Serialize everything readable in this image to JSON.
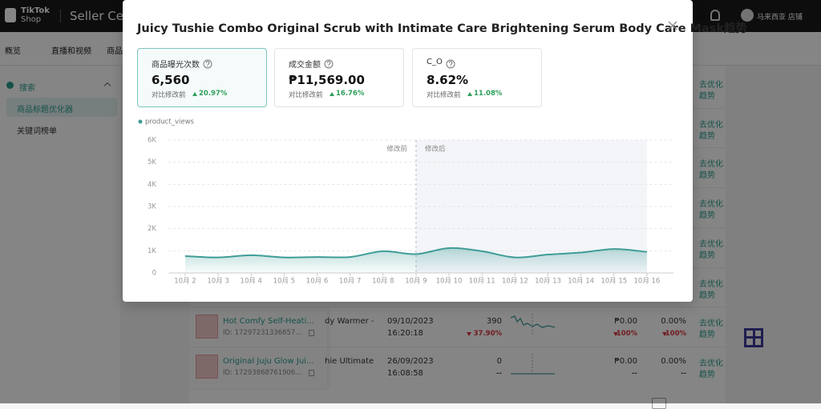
{
  "header": {
    "logo": "TikTok",
    "logo_sub": "Shop",
    "title": "Seller Cen",
    "store": "马来西亚 店铺"
  },
  "nav": [
    "概览",
    "直播和视频",
    "商品"
  ],
  "sidebar": {
    "section": "搜索",
    "items": [
      "商品标题优化器",
      "关键词榜单"
    ]
  },
  "table": {
    "actions": [
      [
        "去优化",
        "趋势"
      ],
      [
        "去优化",
        "趋势"
      ],
      [
        "去优化",
        "趋势"
      ],
      [
        "去优化",
        "趋势"
      ],
      [
        "去优化",
        "趋势"
      ],
      [
        "去优化",
        "趋势"
      ],
      [
        "去优化",
        "趋势"
      ],
      [
        "去优化",
        "趋势"
      ]
    ],
    "rows": [
      {
        "name": "Hot Comfy Self-Heati...",
        "id": "ID: 17297231336657...",
        "title_tail": "dy Warmer -",
        "date": "09/10/2023",
        "time": "16:20:18",
        "views": "390",
        "views_change": {
          "text": "37.90%",
          "direction": "down"
        },
        "sales": "₱0.00",
        "sales_change": {
          "text": "100%",
          "direction": "down"
        },
        "rate": "0.00%",
        "rate_change": {
          "text": "100%",
          "direction": "down"
        }
      },
      {
        "name": "Original Juju Glow Jui...",
        "id": "ID: 17293868761906...",
        "title_tail": "hie Ultimate",
        "date": "26/09/2023",
        "time": "16:08:58",
        "views": "0",
        "views_change": {
          "text": "--"
        },
        "sales": "₱0.00",
        "sales_change": {
          "text": "--"
        },
        "rate": "0.00%",
        "rate_change": {
          "text": "--"
        }
      }
    ]
  },
  "modal": {
    "title": "Juicy Tushie Combo Original Scrub with Intimate Care Brightening Serum Body Care Mask趋势",
    "metrics": [
      {
        "label": "商品曝光次数",
        "value": "6,560",
        "compare_label": "对比修改前",
        "change": {
          "text": "20.97%",
          "direction": "up"
        }
      },
      {
        "label": "成交金额",
        "value": "₱11,569.00",
        "compare_label": "对比修改前",
        "change": {
          "text": "16.76%",
          "direction": "up"
        }
      },
      {
        "label": "C_O",
        "value": "8.62%",
        "compare_label": "对比修改前",
        "change": {
          "text": "11.08%",
          "direction": "up"
        }
      }
    ]
  },
  "chart_data": {
    "type": "line",
    "categories": [
      "10月 2",
      "10月 3",
      "10月 4",
      "10月 5",
      "10月 6",
      "10月 7",
      "10月 8",
      "10月 9",
      "10月 10",
      "10月 11",
      "10月 12",
      "10月 13",
      "10月 14",
      "10月 15",
      "10月 16"
    ],
    "series": [
      {
        "name": "product_views",
        "color": "#3f9d97",
        "values": [
          760,
          700,
          800,
          700,
          720,
          720,
          980,
          850,
          1120,
          980,
          700,
          830,
          920,
          1080,
          950
        ]
      }
    ],
    "ylim": [
      0,
      6000
    ],
    "yticks": [
      0,
      {
        "value": 1000,
        "label": "1K"
      },
      {
        "value": 2000,
        "label": "2K"
      },
      {
        "value": 3000,
        "label": "3K"
      },
      {
        "value": 4000,
        "label": "4K"
      },
      {
        "value": 5000,
        "label": "5K"
      },
      {
        "value": 6000,
        "label": "6K"
      }
    ],
    "grid": true,
    "annotation": {
      "x": "10月 9",
      "before": "修改前",
      "after": "修改后"
    }
  }
}
